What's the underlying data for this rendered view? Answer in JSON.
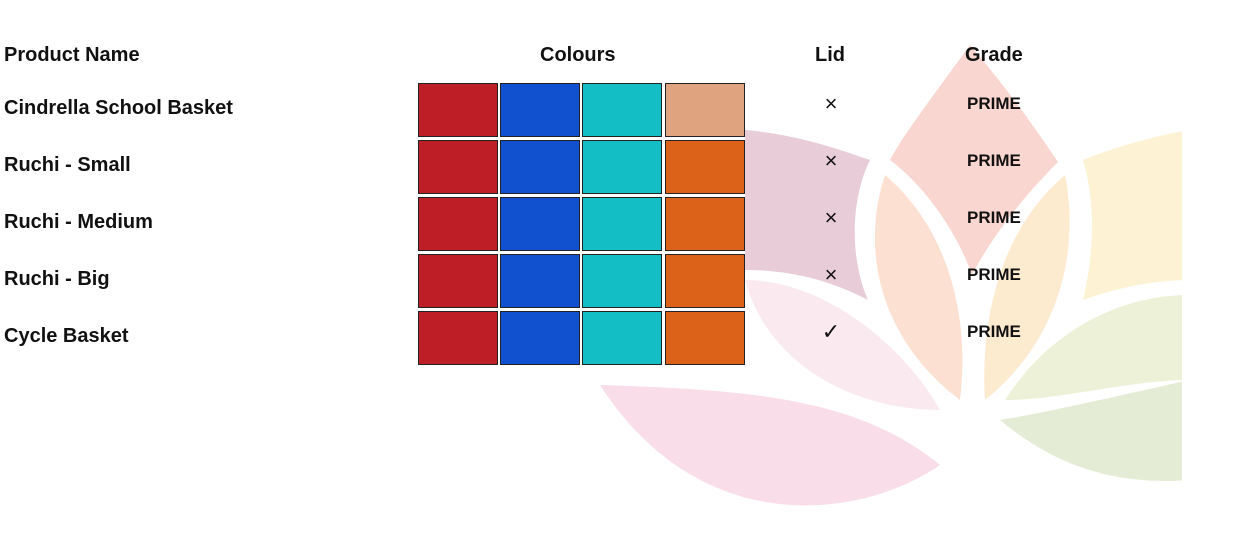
{
  "headers": {
    "product_name": "Product Name",
    "colours": "Colours",
    "lid": "Lid",
    "grade": "Grade"
  },
  "colour_swatches": [
    "#be1f26",
    "#1150cf",
    "#14bec5",
    "#dc6219"
  ],
  "first_row_last_swatch": "#dfa47f",
  "rows": [
    {
      "name": "Cindrella School Basket",
      "lid": "×",
      "lid_icon": "cross-icon",
      "grade": "PRIME"
    },
    {
      "name": "Ruchi - Small",
      "lid": "×",
      "lid_icon": "cross-icon",
      "grade": "PRIME"
    },
    {
      "name": "Ruchi - Medium",
      "lid": "×",
      "lid_icon": "cross-icon",
      "grade": "PRIME"
    },
    {
      "name": "Ruchi - Big",
      "lid": "×",
      "lid_icon": "cross-icon",
      "grade": "PRIME"
    },
    {
      "name": "Cycle Basket",
      "lid": "✓",
      "lid_icon": "check-icon",
      "grade": "PRIME"
    }
  ]
}
